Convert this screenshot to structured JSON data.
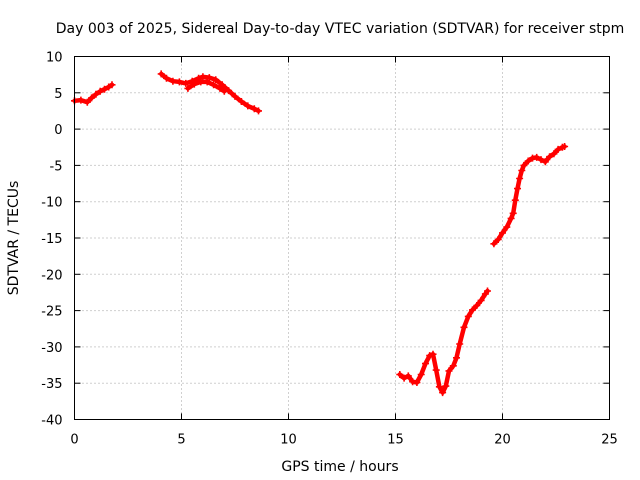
{
  "chart_data": {
    "type": "scatter",
    "title": "Day 003 of 2025, Sidereal Day-to-day VTEC variation (SDTVAR) for receiver stpm",
    "xlabel": "GPS time / hours",
    "ylabel": "SDTVAR / TECUs",
    "xlim": [
      0,
      25
    ],
    "ylim": [
      -40,
      10
    ],
    "xticks": [
      0,
      5,
      10,
      15,
      20,
      25
    ],
    "yticks": [
      -40,
      -35,
      -30,
      -25,
      -20,
      -15,
      -10,
      -5,
      0,
      5,
      10
    ],
    "grid": true,
    "marker": "+",
    "color": "#ff0000",
    "series": [
      {
        "name": "SDTVAR",
        "segments": [
          [
            [
              0.0,
              3.9
            ],
            [
              0.3,
              4.0
            ],
            [
              0.6,
              3.7
            ],
            [
              0.8,
              4.3
            ],
            [
              1.0,
              4.8
            ],
            [
              1.2,
              5.2
            ],
            [
              1.4,
              5.5
            ],
            [
              1.6,
              5.8
            ],
            [
              1.75,
              6.1
            ]
          ],
          [
            [
              4.05,
              7.6
            ],
            [
              4.3,
              7.0
            ],
            [
              4.6,
              6.6
            ],
            [
              4.9,
              6.5
            ],
            [
              5.2,
              6.3
            ],
            [
              5.5,
              6.6
            ],
            [
              5.8,
              7.0
            ],
            [
              6.0,
              7.2
            ],
            [
              6.3,
              7.1
            ],
            [
              6.6,
              6.8
            ],
            [
              6.9,
              6.1
            ],
            [
              7.2,
              5.3
            ],
            [
              7.5,
              4.5
            ],
            [
              7.8,
              3.8
            ],
            [
              8.1,
              3.2
            ],
            [
              8.4,
              2.8
            ],
            [
              8.6,
              2.5
            ]
          ],
          [
            [
              5.3,
              5.6
            ],
            [
              5.6,
              6.2
            ],
            [
              5.9,
              6.5
            ],
            [
              6.2,
              6.5
            ],
            [
              6.5,
              6.1
            ],
            [
              6.8,
              5.6
            ],
            [
              7.0,
              5.2
            ]
          ],
          [
            [
              15.2,
              -33.8
            ],
            [
              15.4,
              -34.3
            ],
            [
              15.6,
              -34.0
            ],
            [
              15.8,
              -34.8
            ],
            [
              16.0,
              -34.9
            ],
            [
              16.2,
              -33.8
            ],
            [
              16.4,
              -32.3
            ],
            [
              16.6,
              -31.2
            ],
            [
              16.75,
              -31.0
            ],
            [
              16.9,
              -33.2
            ],
            [
              17.05,
              -35.5
            ],
            [
              17.2,
              -36.3
            ],
            [
              17.35,
              -35.4
            ],
            [
              17.5,
              -33.3
            ],
            [
              17.7,
              -32.6
            ],
            [
              17.85,
              -31.5
            ],
            [
              18.0,
              -29.6
            ],
            [
              18.2,
              -27.3
            ],
            [
              18.4,
              -25.8
            ],
            [
              18.6,
              -24.9
            ],
            [
              18.8,
              -24.3
            ],
            [
              19.0,
              -23.6
            ],
            [
              19.2,
              -22.7
            ],
            [
              19.3,
              -22.3
            ]
          ],
          [
            [
              19.6,
              -15.8
            ],
            [
              19.8,
              -15.2
            ],
            [
              20.0,
              -14.3
            ],
            [
              20.2,
              -13.5
            ],
            [
              20.4,
              -12.3
            ],
            [
              20.5,
              -11.6
            ],
            [
              20.6,
              -9.8
            ],
            [
              20.7,
              -8.2
            ],
            [
              20.8,
              -6.8
            ],
            [
              20.9,
              -5.7
            ],
            [
              21.0,
              -5.0
            ],
            [
              21.2,
              -4.4
            ],
            [
              21.4,
              -4.0
            ],
            [
              21.6,
              -3.9
            ],
            [
              21.8,
              -4.2
            ],
            [
              22.0,
              -4.5
            ],
            [
              22.2,
              -3.8
            ],
            [
              22.4,
              -3.4
            ],
            [
              22.6,
              -2.8
            ],
            [
              22.8,
              -2.5
            ],
            [
              22.9,
              -2.4
            ]
          ]
        ]
      }
    ]
  }
}
